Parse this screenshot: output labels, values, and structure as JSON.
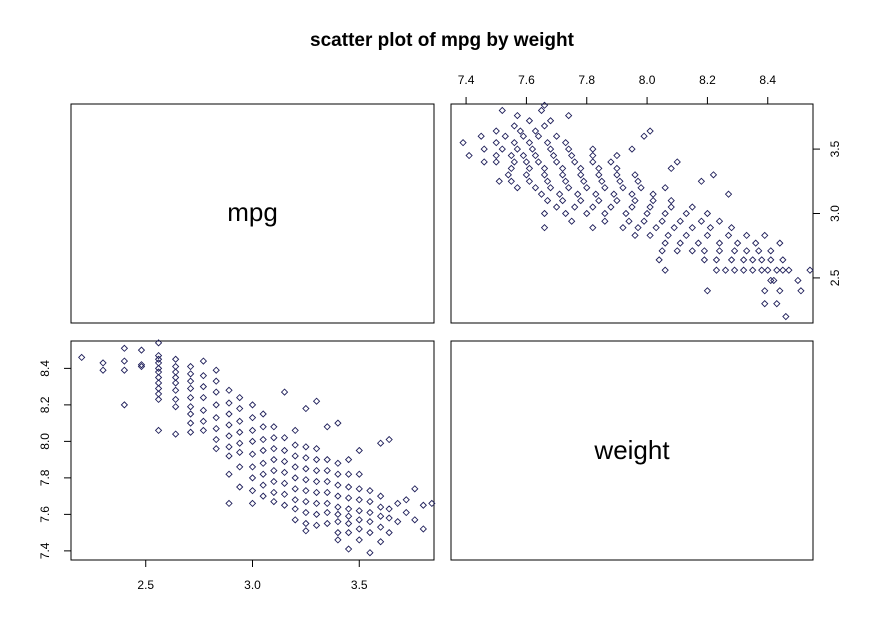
{
  "chart_data": {
    "type": "scatter",
    "layout": "scatterplot-matrix",
    "title": "scatter plot of mpg by weight",
    "variables": [
      "mpg",
      "weight"
    ],
    "marker": "open-diamond",
    "point_color": "#1f1f5a",
    "axes": {
      "mpg": {
        "range": [
          2.15,
          3.85
        ],
        "ticks": [
          2.5,
          3.0,
          3.5
        ],
        "tick_labels": [
          "2.5",
          "3.0",
          "3.5"
        ]
      },
      "weight": {
        "range": [
          7.35,
          8.55
        ],
        "ticks": [
          7.4,
          7.6,
          7.8,
          8.0,
          8.2,
          8.4
        ],
        "tick_labels": [
          "7.4",
          "7.6",
          "7.8",
          "8.0",
          "8.2",
          "8.4"
        ]
      }
    },
    "points": [
      [
        2.2,
        8.46
      ],
      [
        2.3,
        8.43
      ],
      [
        2.3,
        8.39
      ],
      [
        2.4,
        8.51
      ],
      [
        2.4,
        8.44
      ],
      [
        2.4,
        8.39
      ],
      [
        2.4,
        8.2
      ],
      [
        2.48,
        8.5
      ],
      [
        2.48,
        8.42
      ],
      [
        2.48,
        8.41
      ],
      [
        2.56,
        8.54
      ],
      [
        2.56,
        8.47
      ],
      [
        2.56,
        8.45
      ],
      [
        2.56,
        8.43
      ],
      [
        2.56,
        8.4
      ],
      [
        2.56,
        8.38
      ],
      [
        2.56,
        8.35
      ],
      [
        2.56,
        8.32
      ],
      [
        2.56,
        8.29
      ],
      [
        2.56,
        8.26
      ],
      [
        2.56,
        8.23
      ],
      [
        2.56,
        8.06
      ],
      [
        2.64,
        8.45
      ],
      [
        2.64,
        8.41
      ],
      [
        2.64,
        8.38
      ],
      [
        2.64,
        8.35
      ],
      [
        2.64,
        8.32
      ],
      [
        2.64,
        8.28
      ],
      [
        2.64,
        8.23
      ],
      [
        2.64,
        8.19
      ],
      [
        2.64,
        8.04
      ],
      [
        2.71,
        8.41
      ],
      [
        2.71,
        8.37
      ],
      [
        2.71,
        8.33
      ],
      [
        2.71,
        8.29
      ],
      [
        2.71,
        8.24
      ],
      [
        2.71,
        8.19
      ],
      [
        2.71,
        8.15
      ],
      [
        2.71,
        8.1
      ],
      [
        2.71,
        8.05
      ],
      [
        2.77,
        8.44
      ],
      [
        2.77,
        8.36
      ],
      [
        2.77,
        8.3
      ],
      [
        2.77,
        8.24
      ],
      [
        2.77,
        8.17
      ],
      [
        2.77,
        8.11
      ],
      [
        2.77,
        8.06
      ],
      [
        2.83,
        8.39
      ],
      [
        2.83,
        8.33
      ],
      [
        2.83,
        8.27
      ],
      [
        2.83,
        8.2
      ],
      [
        2.83,
        8.13
      ],
      [
        2.83,
        8.07
      ],
      [
        2.83,
        8.01
      ],
      [
        2.83,
        7.96
      ],
      [
        2.89,
        8.28
      ],
      [
        2.89,
        8.21
      ],
      [
        2.89,
        8.15
      ],
      [
        2.89,
        8.09
      ],
      [
        2.89,
        8.03
      ],
      [
        2.89,
        7.97
      ],
      [
        2.89,
        7.92
      ],
      [
        2.89,
        7.82
      ],
      [
        2.89,
        7.66
      ],
      [
        2.94,
        8.24
      ],
      [
        2.94,
        8.18
      ],
      [
        2.94,
        8.11
      ],
      [
        2.94,
        8.05
      ],
      [
        2.94,
        7.99
      ],
      [
        2.94,
        7.94
      ],
      [
        2.94,
        7.86
      ],
      [
        2.94,
        7.75
      ],
      [
        3.0,
        8.2
      ],
      [
        3.0,
        8.13
      ],
      [
        3.0,
        8.06
      ],
      [
        3.0,
        8.0
      ],
      [
        3.0,
        7.93
      ],
      [
        3.0,
        7.86
      ],
      [
        3.0,
        7.8
      ],
      [
        3.0,
        7.73
      ],
      [
        3.0,
        7.66
      ],
      [
        3.05,
        8.15
      ],
      [
        3.05,
        8.08
      ],
      [
        3.05,
        8.01
      ],
      [
        3.05,
        7.95
      ],
      [
        3.05,
        7.88
      ],
      [
        3.05,
        7.82
      ],
      [
        3.05,
        7.76
      ],
      [
        3.05,
        7.7
      ],
      [
        3.1,
        8.08
      ],
      [
        3.1,
        8.02
      ],
      [
        3.1,
        7.96
      ],
      [
        3.1,
        7.9
      ],
      [
        3.1,
        7.84
      ],
      [
        3.1,
        7.78
      ],
      [
        3.1,
        7.72
      ],
      [
        3.1,
        7.67
      ],
      [
        3.15,
        8.27
      ],
      [
        3.15,
        8.02
      ],
      [
        3.15,
        7.95
      ],
      [
        3.15,
        7.89
      ],
      [
        3.15,
        7.83
      ],
      [
        3.15,
        7.77
      ],
      [
        3.15,
        7.71
      ],
      [
        3.15,
        7.65
      ],
      [
        3.2,
        8.06
      ],
      [
        3.2,
        7.98
      ],
      [
        3.2,
        7.92
      ],
      [
        3.2,
        7.86
      ],
      [
        3.2,
        7.8
      ],
      [
        3.2,
        7.74
      ],
      [
        3.2,
        7.68
      ],
      [
        3.2,
        7.63
      ],
      [
        3.2,
        7.57
      ],
      [
        3.25,
        8.18
      ],
      [
        3.25,
        7.97
      ],
      [
        3.25,
        7.91
      ],
      [
        3.25,
        7.85
      ],
      [
        3.25,
        7.79
      ],
      [
        3.25,
        7.73
      ],
      [
        3.25,
        7.67
      ],
      [
        3.25,
        7.61
      ],
      [
        3.25,
        7.55
      ],
      [
        3.25,
        7.51
      ],
      [
        3.3,
        8.22
      ],
      [
        3.3,
        7.96
      ],
      [
        3.3,
        7.9
      ],
      [
        3.3,
        7.84
      ],
      [
        3.3,
        7.78
      ],
      [
        3.3,
        7.72
      ],
      [
        3.3,
        7.66
      ],
      [
        3.3,
        7.6
      ],
      [
        3.3,
        7.54
      ],
      [
        3.35,
        8.08
      ],
      [
        3.35,
        7.9
      ],
      [
        3.35,
        7.84
      ],
      [
        3.35,
        7.78
      ],
      [
        3.35,
        7.72
      ],
      [
        3.35,
        7.66
      ],
      [
        3.35,
        7.61
      ],
      [
        3.35,
        7.55
      ],
      [
        3.4,
        8.1
      ],
      [
        3.4,
        7.88
      ],
      [
        3.4,
        7.82
      ],
      [
        3.4,
        7.76
      ],
      [
        3.4,
        7.7
      ],
      [
        3.4,
        7.64
      ],
      [
        3.4,
        7.6
      ],
      [
        3.4,
        7.56
      ],
      [
        3.4,
        7.5
      ],
      [
        3.4,
        7.46
      ],
      [
        3.45,
        7.9
      ],
      [
        3.45,
        7.82
      ],
      [
        3.45,
        7.75
      ],
      [
        3.45,
        7.69
      ],
      [
        3.45,
        7.63
      ],
      [
        3.45,
        7.59
      ],
      [
        3.45,
        7.55
      ],
      [
        3.45,
        7.5
      ],
      [
        3.45,
        7.41
      ],
      [
        3.5,
        7.95
      ],
      [
        3.5,
        7.82
      ],
      [
        3.5,
        7.74
      ],
      [
        3.5,
        7.68
      ],
      [
        3.5,
        7.62
      ],
      [
        3.5,
        7.57
      ],
      [
        3.5,
        7.52
      ],
      [
        3.5,
        7.46
      ],
      [
        3.55,
        7.73
      ],
      [
        3.55,
        7.67
      ],
      [
        3.55,
        7.61
      ],
      [
        3.55,
        7.56
      ],
      [
        3.55,
        7.5
      ],
      [
        3.55,
        7.39
      ],
      [
        3.6,
        7.99
      ],
      [
        3.6,
        7.7
      ],
      [
        3.6,
        7.64
      ],
      [
        3.6,
        7.59
      ],
      [
        3.6,
        7.53
      ],
      [
        3.6,
        7.45
      ],
      [
        3.64,
        8.01
      ],
      [
        3.64,
        7.63
      ],
      [
        3.64,
        7.58
      ],
      [
        3.64,
        7.5
      ],
      [
        3.68,
        7.66
      ],
      [
        3.68,
        7.56
      ],
      [
        3.72,
        7.68
      ],
      [
        3.72,
        7.61
      ],
      [
        3.76,
        7.74
      ],
      [
        3.76,
        7.57
      ],
      [
        3.8,
        7.65
      ],
      [
        3.8,
        7.52
      ],
      [
        3.84,
        7.66
      ]
    ]
  }
}
